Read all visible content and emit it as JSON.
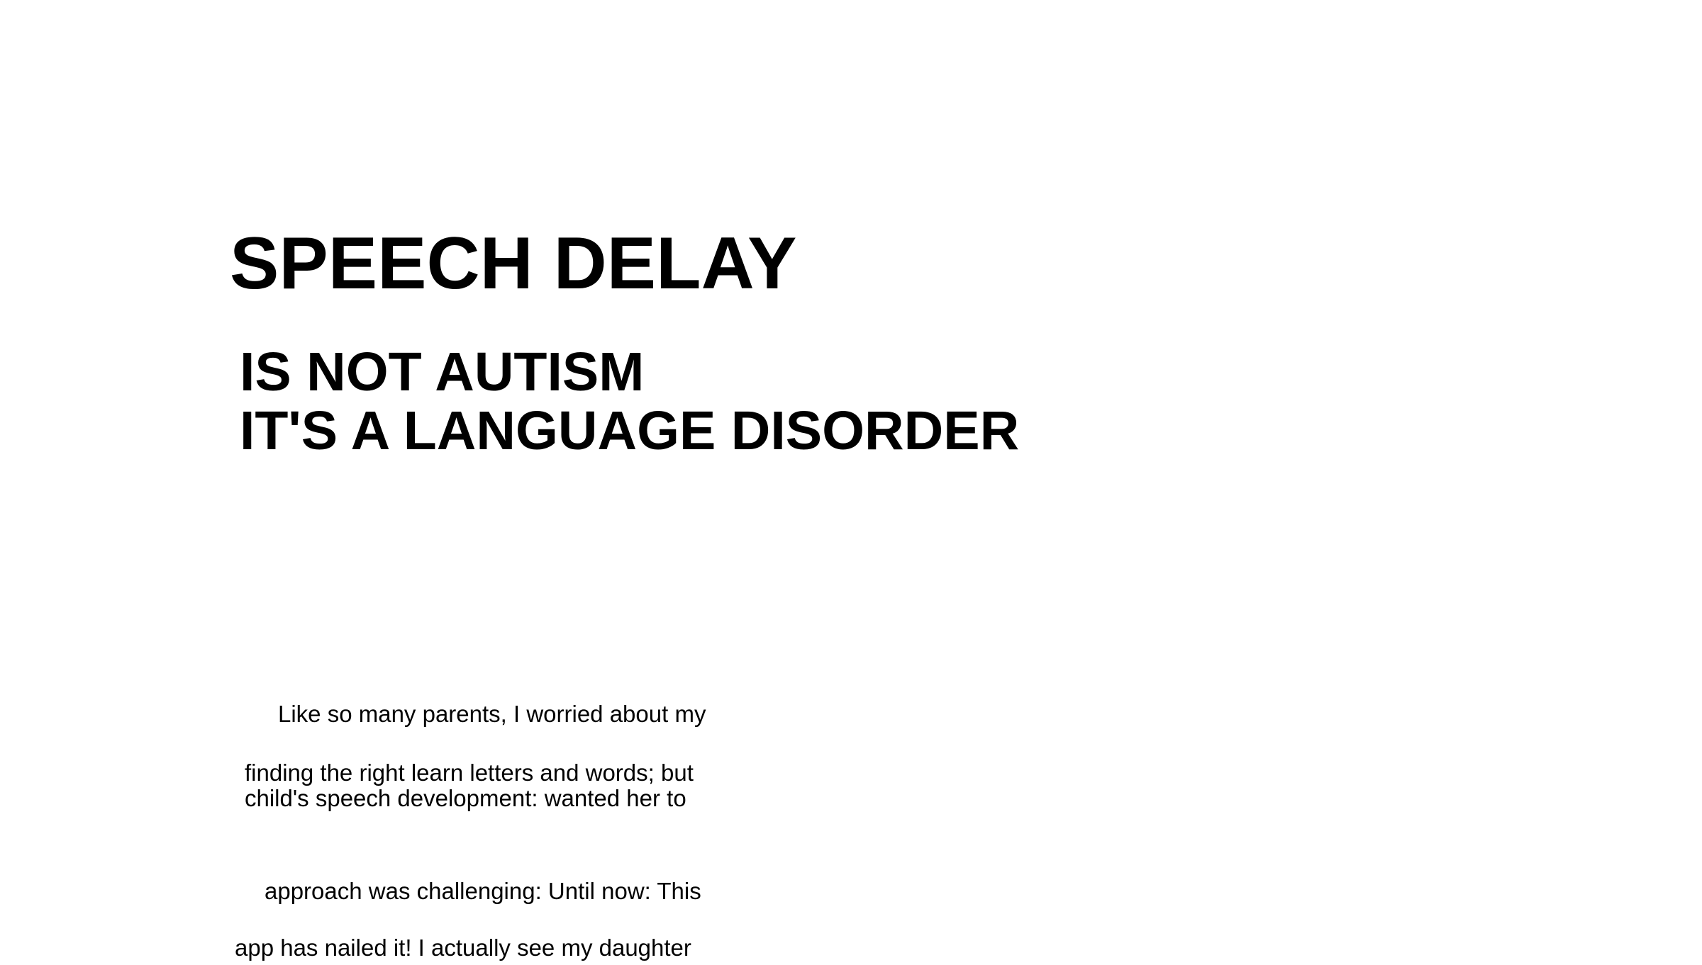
{
  "heading": {
    "title": "SPEECH DELAY",
    "line_2": "IS NOT AUTISM",
    "line_3": "IT'S A LANGUAGE DISORDER"
  },
  "body": {
    "lines": [
      "Like so many parents, I worried about my",
      "finding  the right learn letters and words; but",
      "child's speech development: wanted her to",
      "approach was challenging: Until now: This",
      "app has nailed it! I actually see my daughter"
    ]
  },
  "colors": {
    "background": "#ffffff",
    "text": "#000000"
  }
}
